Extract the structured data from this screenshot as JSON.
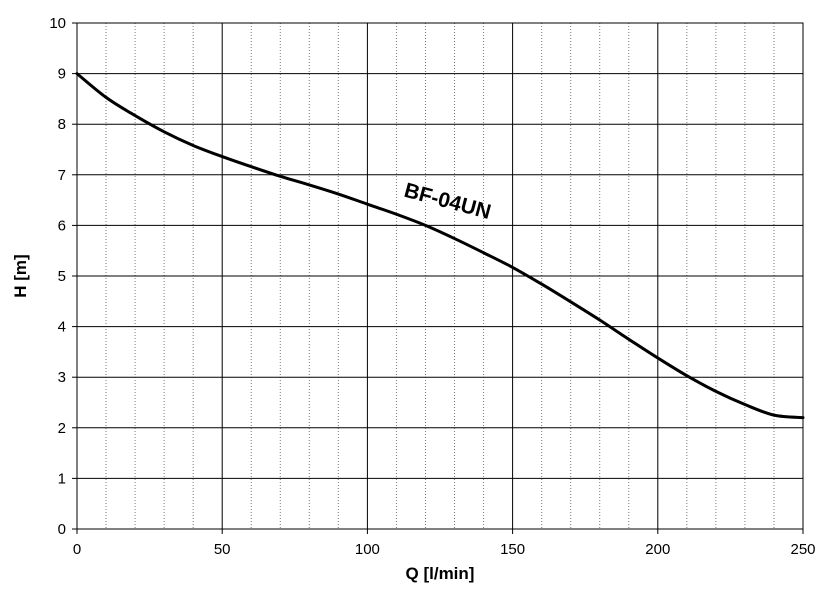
{
  "chart_data": {
    "type": "line",
    "title": "",
    "xlabel": "Q [l/min]",
    "ylabel": "H [m]",
    "xlim": [
      0,
      250
    ],
    "ylim": [
      0,
      10
    ],
    "xticks": [
      "0",
      "50",
      "100",
      "150",
      "200",
      "250"
    ],
    "yticks": [
      "0",
      "1",
      "2",
      "3",
      "4",
      "5",
      "6",
      "7",
      "8",
      "9",
      "10"
    ],
    "x_minor_step": 10,
    "grid": true,
    "legend": "none",
    "series": [
      {
        "name": "BF-04UN",
        "color": "#000000",
        "x": [
          0,
          10,
          20,
          30,
          40,
          50,
          60,
          70,
          80,
          90,
          100,
          110,
          120,
          130,
          140,
          150,
          160,
          170,
          180,
          190,
          200,
          210,
          220,
          230,
          240,
          250
        ],
        "y": [
          9.0,
          8.53,
          8.17,
          7.85,
          7.58,
          7.36,
          7.16,
          6.97,
          6.8,
          6.62,
          6.42,
          6.22,
          6.0,
          5.74,
          5.46,
          5.17,
          4.84,
          4.49,
          4.13,
          3.75,
          3.38,
          3.03,
          2.72,
          2.46,
          2.25,
          2.2
        ]
      }
    ],
    "annotations": [
      {
        "text": "BF-04UN",
        "x": 127,
        "y": 6.35
      }
    ]
  }
}
